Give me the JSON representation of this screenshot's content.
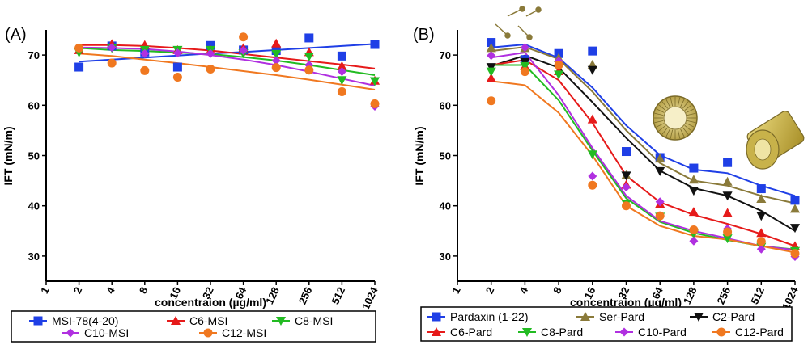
{
  "chart_data": [
    {
      "type": "scatter",
      "panel_label": "(A)",
      "title": "",
      "xlabel": "concentraion (µg/ml)",
      "ylabel": "IFT (mN/m)",
      "x_scale": "log2",
      "xlim": [
        1,
        1024
      ],
      "ylim": [
        25,
        75
      ],
      "x_ticks": [
        "1",
        "2",
        "4",
        "8",
        "16",
        "32",
        "64",
        "128",
        "256",
        "512",
        "1024"
      ],
      "y_ticks": [
        "30",
        "40",
        "50",
        "60",
        "70"
      ],
      "x": [
        2,
        4,
        8,
        16,
        32,
        64,
        128,
        256,
        512,
        1024
      ],
      "legend_position": "bottom",
      "series": [
        {
          "name": "MSI-78(4-20)",
          "color": "#1f3fe6",
          "marker": "square",
          "values": [
            67.6,
            71.8,
            70.6,
            67.6,
            71.9,
            71.0,
            70.9,
            73.4,
            69.8,
            72.1
          ],
          "fit": [
            68.7,
            69.1,
            69.5,
            69.9,
            70.3,
            70.6,
            71.0,
            71.4,
            71.8,
            72.2
          ]
        },
        {
          "name": "C6-MSI",
          "color": "#e61a1a",
          "marker": "triangle-up",
          "values": [
            71.0,
            72.2,
            72.0,
            71.0,
            71.0,
            71.4,
            72.3,
            70.6,
            67.8,
            64.9
          ],
          "fit": [
            72.0,
            72.0,
            71.8,
            71.4,
            70.9,
            70.2,
            69.5,
            68.8,
            68.1,
            67.3
          ]
        },
        {
          "name": "C8-MSI",
          "color": "#22bb22",
          "marker": "triangle-down",
          "values": [
            70.5,
            71.4,
            71.0,
            71.0,
            71.0,
            70.3,
            70.2,
            69.7,
            65.0,
            64.8
          ],
          "fit": [
            71.4,
            71.0,
            70.8,
            70.5,
            70.2,
            69.6,
            68.9,
            68.0,
            67.0,
            66.0
          ]
        },
        {
          "name": "C10-MSI",
          "color": "#b030e0",
          "marker": "diamond",
          "values": [
            71.4,
            71.5,
            70.3,
            70.4,
            70.3,
            70.9,
            68.9,
            68.0,
            66.7,
            59.8
          ],
          "fit": [
            71.5,
            71.4,
            71.2,
            70.7,
            70.0,
            69.1,
            68.0,
            66.7,
            65.3,
            63.9
          ]
        },
        {
          "name": "C12-MSI",
          "color": "#f07820",
          "marker": "circle",
          "values": [
            71.4,
            68.4,
            66.9,
            65.6,
            67.2,
            73.6,
            67.5,
            67.0,
            62.7,
            60.3
          ],
          "fit": [
            70.3,
            69.8,
            69.1,
            68.4,
            67.6,
            66.8,
            66.0,
            65.1,
            64.1,
            63.1
          ]
        }
      ]
    },
    {
      "type": "scatter",
      "panel_label": "(B)",
      "title": "",
      "xlabel": "concentraion (µg/ml)",
      "ylabel": "IFT (mN/m)",
      "x_scale": "log2",
      "xlim": [
        1,
        1024
      ],
      "ylim": [
        25,
        75
      ],
      "x_ticks": [
        "1",
        "2",
        "4",
        "8",
        "16",
        "32",
        "64",
        "128",
        "256",
        "512",
        "1024"
      ],
      "y_ticks": [
        "30",
        "40",
        "50",
        "60",
        "70"
      ],
      "x": [
        2,
        4,
        8,
        16,
        32,
        64,
        128,
        256,
        512,
        1024
      ],
      "legend_position": "bottom",
      "series": [
        {
          "name": "Pardaxin (1-22)",
          "color": "#1f3fe6",
          "marker": "square",
          "values": [
            72.5,
            69.1,
            70.3,
            70.8,
            50.8,
            49.6,
            47.5,
            48.6,
            43.4,
            41.1
          ],
          "fit": [
            71.5,
            72.1,
            69.4,
            63.5,
            56.0,
            50.1,
            47.2,
            46.5,
            44.0,
            42.0
          ]
        },
        {
          "name": "Ser-Pard",
          "color": "#8a7a3a",
          "marker": "triangle-up",
          "values": [
            71.4,
            71.4,
            69.4,
            68.1,
            46.1,
            49.4,
            45.2,
            44.8,
            41.4,
            39.4
          ],
          "fit": [
            70.8,
            71.6,
            69.2,
            62.7,
            55.0,
            48.5,
            45.0,
            44.0,
            42.0,
            40.5
          ]
        },
        {
          "name": "C2-Pard",
          "color": "#111111",
          "marker": "triangle-down",
          "values": [
            67.6,
            68.6,
            67.3,
            67.0,
            46.0,
            46.9,
            43.0,
            42.0,
            38.0,
            35.6
          ],
          "fit": [
            67.8,
            69.9,
            67.5,
            60.6,
            53.5,
            47.0,
            43.5,
            42.0,
            39.0,
            35.0
          ]
        },
        {
          "name": "C6-Pard",
          "color": "#e61a1a",
          "marker": "triangle-up",
          "values": [
            65.4,
            67.8,
            66.8,
            57.2,
            44.2,
            40.4,
            38.8,
            38.6,
            34.6,
            32.0
          ],
          "fit": [
            68.0,
            69.0,
            65.0,
            56.5,
            46.0,
            40.7,
            38.2,
            36.4,
            34.4,
            32.0
          ]
        },
        {
          "name": "C8-Pard",
          "color": "#22bb22",
          "marker": "triangle-down",
          "values": [
            66.7,
            67.8,
            66.1,
            50.2,
            40.4,
            37.8,
            34.4,
            33.5,
            31.8,
            31.0
          ],
          "fit": [
            68.0,
            68.0,
            61.0,
            51.0,
            41.5,
            36.8,
            34.6,
            33.2,
            32.0,
            31.3
          ]
        },
        {
          "name": "C10-Pard",
          "color": "#b030e0",
          "marker": "diamond",
          "values": [
            69.9,
            71.5,
            68.8,
            45.9,
            43.7,
            40.8,
            33.0,
            35.4,
            31.4,
            29.9
          ],
          "fit": [
            69.5,
            70.5,
            62.0,
            51.5,
            42.0,
            37.0,
            35.0,
            33.5,
            32.0,
            31.2
          ]
        },
        {
          "name": "C12-Pard",
          "color": "#f07820",
          "marker": "circle",
          "values": [
            60.9,
            66.7,
            68.0,
            44.1,
            40.0,
            38.0,
            35.2,
            34.8,
            32.9,
            30.5
          ],
          "fit": [
            64.8,
            64.0,
            58.5,
            50.0,
            40.0,
            36.0,
            34.0,
            33.3,
            32.0,
            30.7
          ]
        }
      ]
    }
  ]
}
